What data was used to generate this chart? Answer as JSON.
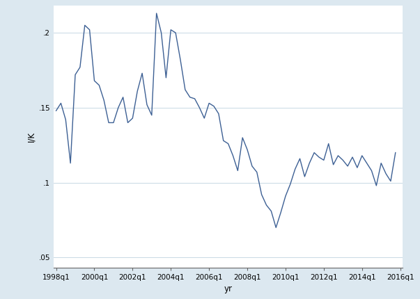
{
  "y_values": [
    0.148,
    0.153,
    0.142,
    0.113,
    0.172,
    0.177,
    0.205,
    0.202,
    0.168,
    0.165,
    0.155,
    0.14,
    0.14,
    0.15,
    0.157,
    0.14,
    0.143,
    0.161,
    0.173,
    0.152,
    0.145,
    0.213,
    0.2,
    0.17,
    0.202,
    0.2,
    0.182,
    0.162,
    0.157,
    0.156,
    0.15,
    0.143,
    0.153,
    0.151,
    0.146,
    0.128,
    0.126,
    0.118,
    0.108,
    0.13,
    0.122,
    0.111,
    0.107,
    0.092,
    0.085,
    0.081,
    0.07,
    0.08,
    0.091,
    0.099,
    0.109,
    0.116,
    0.104,
    0.113,
    0.12,
    0.117,
    0.115,
    0.126,
    0.112,
    0.118,
    0.115,
    0.111,
    0.117,
    0.11,
    0.118,
    0.113,
    0.108,
    0.098,
    0.113,
    0.106,
    0.101,
    0.12
  ],
  "x_tick_labels": [
    "1998q1",
    "2000q1",
    "2002q1",
    "2004q1",
    "2006q1",
    "2008q1",
    "2010q1",
    "2012q1",
    "2014q1",
    "2016q1"
  ],
  "x_tick_positions": [
    0,
    8,
    16,
    24,
    32,
    40,
    48,
    56,
    64,
    72
  ],
  "y_ticks": [
    0.05,
    0.1,
    0.15,
    0.2
  ],
  "y_tick_labels": [
    ".05",
    ".1",
    ".15",
    ".2"
  ],
  "ylim": [
    0.043,
    0.218
  ],
  "xlim": [
    -0.5,
    72.5
  ],
  "ylabel": "I/K",
  "xlabel": "yr",
  "line_color": "#3d6094",
  "bg_color": "#dce8f0",
  "plot_bg_color": "#ffffff",
  "grid_color": "#c8d8e4",
  "line_width": 1.0,
  "figsize": [
    6.03,
    4.3
  ],
  "dpi": 100
}
